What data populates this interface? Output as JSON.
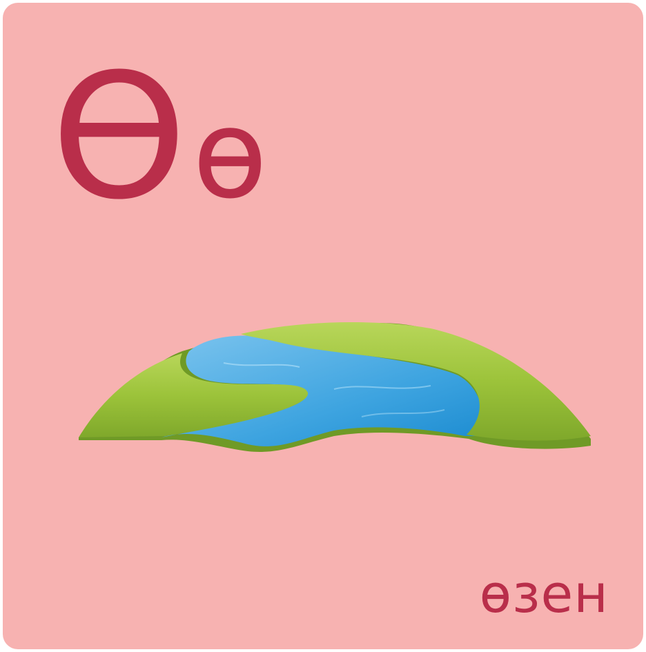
{
  "card": {
    "uppercase_letter": "Ө",
    "lowercase_letter": "ө",
    "word": "өзен",
    "illustration": "river-illustration"
  },
  "colors": {
    "background": "#f7b2b1",
    "text": "#b92e4a",
    "grass": "#9cc33a",
    "water": "#3ea4e0"
  }
}
